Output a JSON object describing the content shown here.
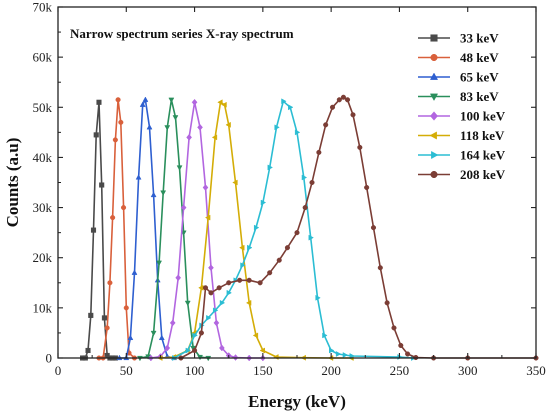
{
  "chart_data": {
    "type": "line",
    "title": "Narrow spectrum series X-ray spectrum",
    "xlabel": "Energy (keV)",
    "ylabel": "Counts (a.u)",
    "xlim": [
      0,
      350
    ],
    "ylim": [
      0,
      70000
    ],
    "x_ticks": [
      0,
      50,
      100,
      150,
      200,
      250,
      300,
      350
    ],
    "x_tick_labels": [
      "0",
      "50",
      "100",
      "150",
      "200",
      "250",
      "300",
      "350"
    ],
    "y_ticks": [
      0,
      10000,
      20000,
      30000,
      40000,
      50000,
      60000,
      70000
    ],
    "y_tick_labels": [
      "0",
      "10k",
      "20k",
      "30k",
      "40k",
      "50k",
      "60k",
      "70k"
    ],
    "grid": false,
    "legend_position": "top-right",
    "series": [
      {
        "name": "33 keV",
        "color": "#4a4a4a",
        "marker": "square",
        "x": [
          18,
          20,
          22,
          24,
          26,
          28,
          30,
          32,
          34,
          36,
          38,
          40,
          42
        ],
        "y": [
          0,
          0,
          1500,
          8500,
          25500,
          44500,
          51000,
          34500,
          8000,
          500,
          0,
          0,
          0
        ]
      },
      {
        "name": "48 keV",
        "color": "#d9603b",
        "marker": "circle",
        "x": [
          30,
          33,
          36,
          38,
          40,
          42,
          44,
          46,
          48,
          50,
          52,
          56
        ],
        "y": [
          0,
          0,
          6000,
          15000,
          28000,
          43500,
          51500,
          47000,
          30000,
          10000,
          1000,
          0
        ]
      },
      {
        "name": "65 keV",
        "color": "#2e5fd0",
        "marker": "triangle-up",
        "x": [
          45,
          50,
          53,
          56,
          59,
          62,
          64,
          67,
          70,
          73,
          76,
          80,
          85
        ],
        "y": [
          0,
          0,
          4000,
          17000,
          36000,
          50500,
          51500,
          46000,
          32500,
          15500,
          4000,
          300,
          0
        ]
      },
      {
        "name": "83 keV",
        "color": "#2a8f5c",
        "marker": "triangle-down",
        "x": [
          60,
          66,
          70,
          74,
          77,
          80,
          83,
          86,
          89,
          92,
          95,
          99,
          104,
          110
        ],
        "y": [
          0,
          300,
          5000,
          19000,
          33000,
          46000,
          51500,
          48000,
          38000,
          25000,
          11000,
          2000,
          200,
          0
        ]
      },
      {
        "name": "100 keV",
        "color": "#b266e0",
        "marker": "diamond",
        "x": [
          68,
          75,
          80,
          84,
          88,
          92,
          96,
          100,
          104,
          108,
          112,
          116,
          120,
          125,
          130,
          140,
          150
        ],
        "y": [
          0,
          300,
          2000,
          7000,
          16000,
          30000,
          44000,
          51000,
          46000,
          34000,
          18000,
          7000,
          2000,
          500,
          100,
          0,
          0
        ]
      },
      {
        "name": "118 keV",
        "color": "#d4ad07",
        "marker": "triangle-left",
        "x": [
          75,
          85,
          95,
          100,
          105,
          110,
          115,
          119,
          122,
          125,
          130,
          135,
          140,
          145,
          150,
          160,
          180,
          200,
          215
        ],
        "y": [
          0,
          200,
          1500,
          5000,
          14000,
          28000,
          44000,
          51000,
          50500,
          46500,
          35000,
          22000,
          11000,
          4500,
          1500,
          200,
          50,
          0,
          0
        ]
      },
      {
        "name": "164 keV",
        "color": "#2bbdd3",
        "marker": "triangle-right",
        "x": [
          85,
          95,
          100,
          105,
          110,
          115,
          120,
          125,
          130,
          135,
          140,
          145,
          150,
          155,
          160,
          165,
          170,
          175,
          180,
          185,
          190,
          195,
          200,
          205,
          210,
          215,
          250,
          260
        ],
        "y": [
          0,
          1500,
          4500,
          6500,
          8000,
          9500,
          11000,
          13000,
          15500,
          18500,
          22000,
          26000,
          31000,
          38000,
          46000,
          51200,
          50000,
          45000,
          36000,
          24000,
          12000,
          4500,
          1500,
          800,
          600,
          400,
          200,
          0
        ]
      },
      {
        "name": "208 keV",
        "color": "#7b3d35",
        "marker": "circle",
        "x": [
          90,
          100,
          105,
          108,
          112,
          118,
          125,
          133,
          140,
          148,
          155,
          162,
          168,
          175,
          181,
          186,
          191,
          196,
          201,
          206,
          209,
          212,
          216,
          221,
          226,
          231,
          236,
          241,
          246,
          251,
          256,
          262,
          275,
          300,
          350
        ],
        "y": [
          0,
          1500,
          5000,
          14000,
          13000,
          14000,
          15000,
          15500,
          15500,
          15000,
          17000,
          19500,
          22000,
          25000,
          30000,
          35000,
          41000,
          46500,
          50000,
          51500,
          52000,
          51500,
          48500,
          42000,
          34000,
          26000,
          18000,
          11000,
          6000,
          2500,
          800,
          100,
          0,
          0,
          0
        ]
      }
    ]
  }
}
